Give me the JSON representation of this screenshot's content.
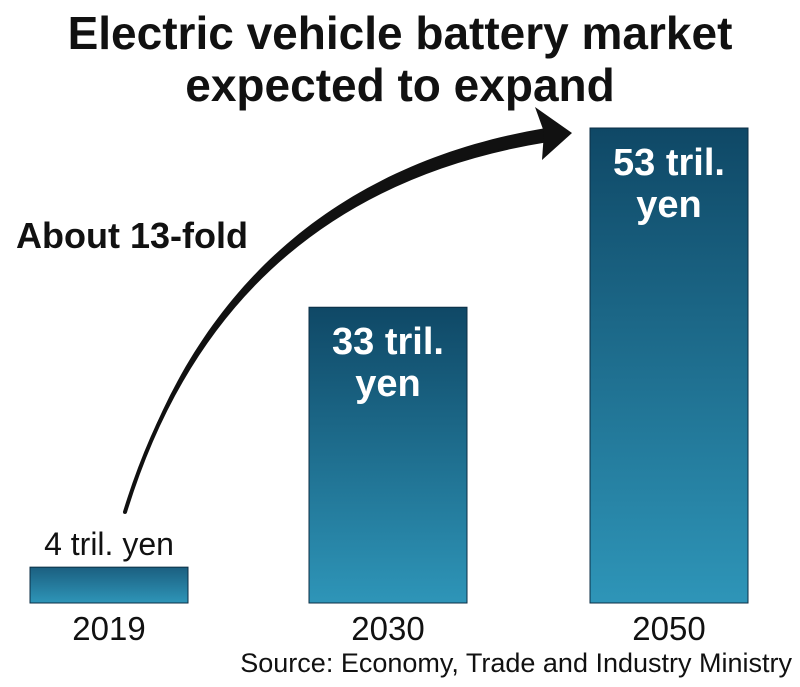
{
  "chart_data": {
    "type": "bar",
    "title_lines": [
      "Electric vehicle battery market",
      "expected to expand"
    ],
    "categories": [
      "2019",
      "2030",
      "2050"
    ],
    "values": [
      4,
      33,
      53
    ],
    "unit": "trillion yen",
    "value_labels": [
      [
        "4 tril. yen"
      ],
      [
        "33 tril.",
        "yen"
      ],
      [
        "53 tril.",
        "yen"
      ]
    ],
    "annotation": "About 13-fold",
    "source": "Source: Economy, Trade and Industry Ministry",
    "ylim": [
      0,
      53
    ],
    "colors": {
      "bar_top": "#0f4866",
      "bar_bottom": "#2e95b8",
      "text": "#111111",
      "label_on_bar": "#ffffff"
    }
  }
}
